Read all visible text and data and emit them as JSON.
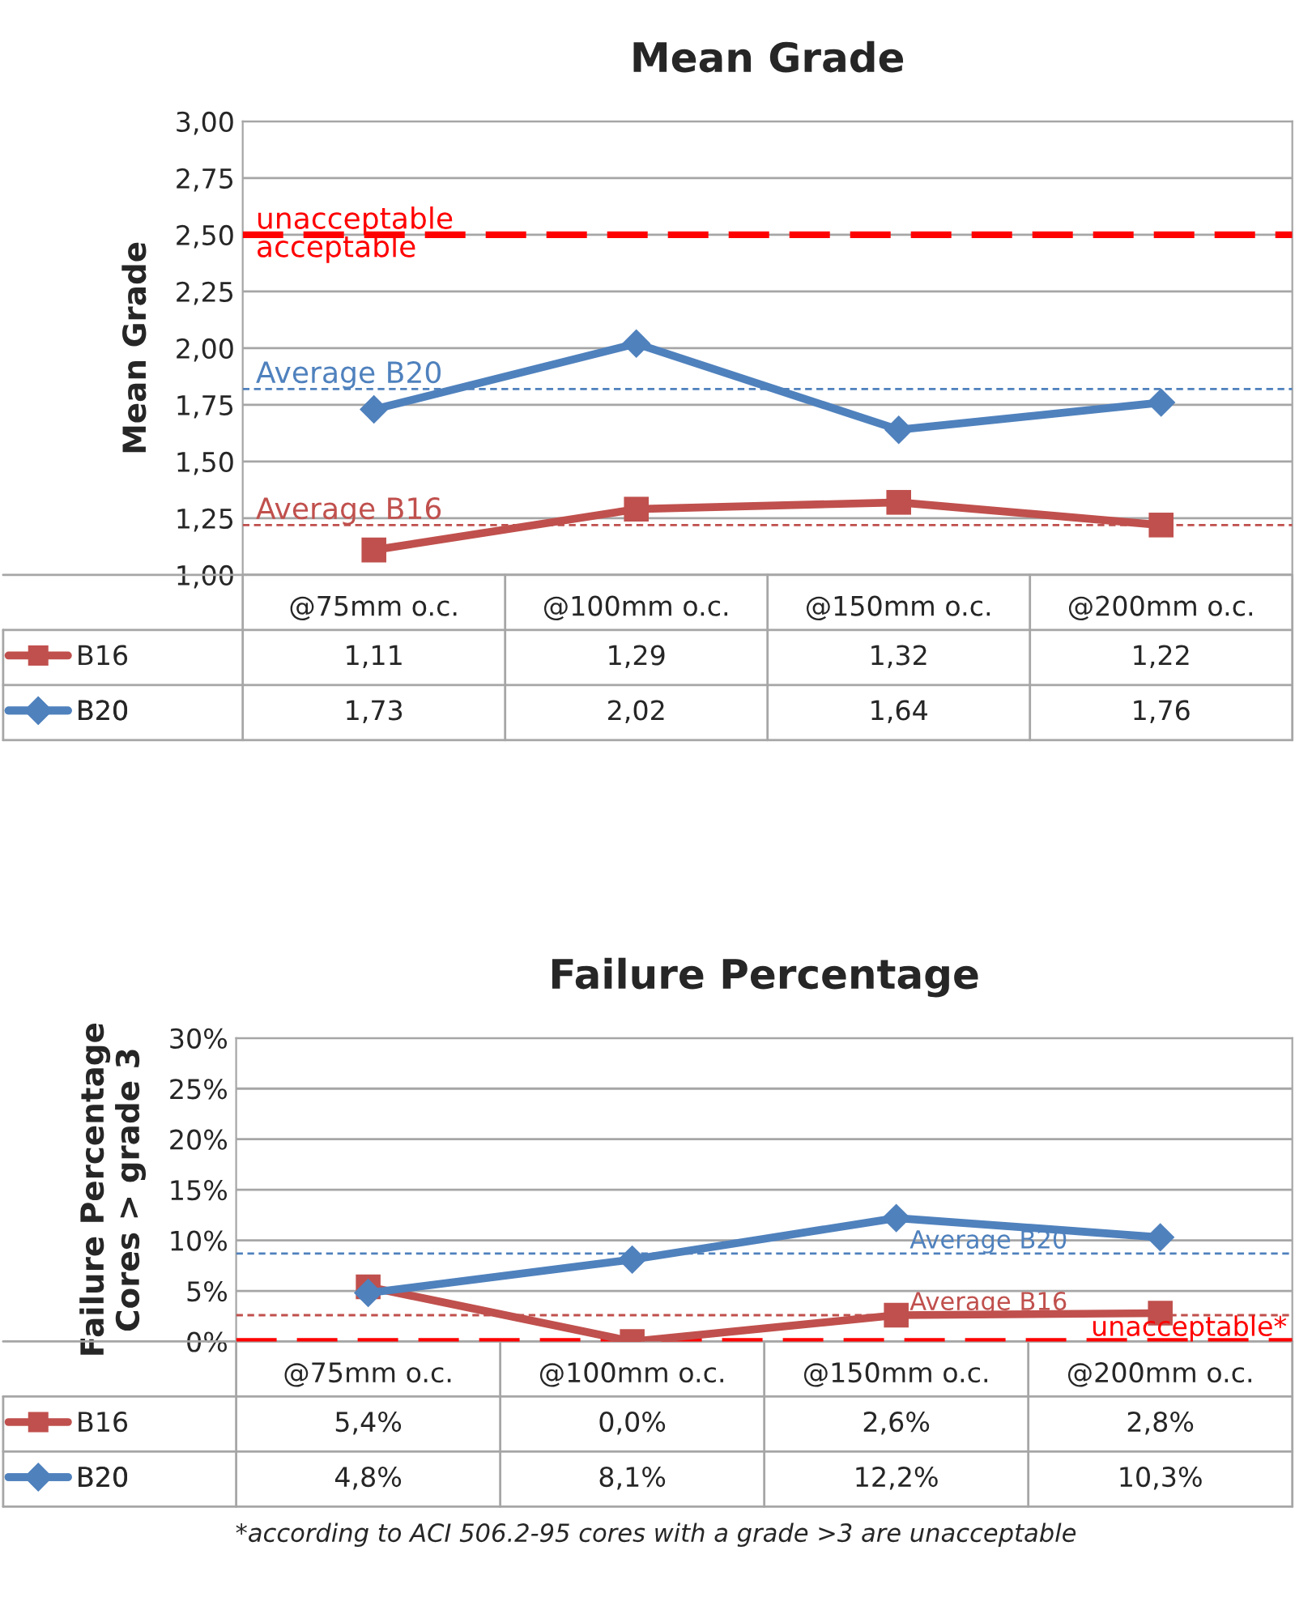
{
  "chart_data": [
    {
      "type": "line",
      "title": "Mean Grade",
      "ylabel": "Mean Grade",
      "categories": [
        "@75mm o.c.",
        "@100mm o.c.",
        "@150mm o.c.",
        "@200mm o.c."
      ],
      "series": [
        {
          "name": "B16",
          "color": "#c0504d",
          "marker": "square",
          "values": [
            1.11,
            1.29,
            1.32,
            1.22
          ],
          "value_labels": [
            "1,11",
            "1,29",
            "1,32",
            "1,22"
          ]
        },
        {
          "name": "B20",
          "color": "#4f81bd",
          "marker": "diamond",
          "values": [
            1.73,
            2.02,
            1.64,
            1.76
          ],
          "value_labels": [
            "1,73",
            "2,02",
            "1,64",
            "1,76"
          ]
        }
      ],
      "ylim": [
        1.0,
        3.0
      ],
      "yticks": [
        {
          "value": 1.0,
          "label": "1,00"
        },
        {
          "value": 1.25,
          "label": "1,25"
        },
        {
          "value": 1.5,
          "label": "1,50"
        },
        {
          "value": 1.75,
          "label": "1,75"
        },
        {
          "value": 2.0,
          "label": "2,00"
        },
        {
          "value": 2.25,
          "label": "2,25"
        },
        {
          "value": 2.5,
          "label": "2,50"
        },
        {
          "value": 2.75,
          "label": "2,75"
        },
        {
          "value": 3.0,
          "label": "3,00"
        }
      ],
      "grid": "y",
      "legend": "bottom",
      "ref_lines": [
        {
          "axis": "y",
          "value": 2.5,
          "label": "unacceptable",
          "color": "#ff0000",
          "line_style": "dashed"
        },
        {
          "axis": "y",
          "value": 1.82,
          "label": "Average B20",
          "color": "#4f81bd",
          "line_style": "dotted"
        },
        {
          "axis": "y",
          "value": 1.22,
          "label": "Average B16",
          "color": "#c0504d",
          "line_style": "dotted"
        }
      ],
      "annotations": [
        {
          "text": "acceptable",
          "y": 2.5
        }
      ]
    },
    {
      "type": "line",
      "title": "Failure Percentage",
      "ylabel": "Failure Percentage\nCores > grade 3",
      "categories": [
        "@75mm o.c.",
        "@100mm o.c.",
        "@150mm o.c.",
        "@200mm o.c."
      ],
      "series": [
        {
          "name": "B16",
          "color": "#c0504d",
          "marker": "square",
          "values": [
            5.4,
            0.0,
            2.6,
            2.8
          ],
          "value_labels": [
            "5,4%",
            "0,0%",
            "2,6%",
            "2,8%"
          ]
        },
        {
          "name": "B20",
          "color": "#4f81bd",
          "marker": "diamond",
          "values": [
            4.8,
            8.1,
            12.2,
            10.3
          ],
          "value_labels": [
            "4,8%",
            "8,1%",
            "12,2%",
            "10,3%"
          ]
        }
      ],
      "ylim": [
        0,
        30
      ],
      "yticks": [
        {
          "value": 0,
          "label": "0%"
        },
        {
          "value": 5,
          "label": "5%"
        },
        {
          "value": 10,
          "label": "10%"
        },
        {
          "value": 15,
          "label": "15%"
        },
        {
          "value": 20,
          "label": "20%"
        },
        {
          "value": 25,
          "label": "25%"
        },
        {
          "value": 30,
          "label": "30%"
        }
      ],
      "grid": "y",
      "legend": "bottom",
      "ref_lines": [
        {
          "axis": "y",
          "value": 8.7,
          "label": "Average B20",
          "color": "#4f81bd",
          "line_style": "dotted"
        },
        {
          "axis": "y",
          "value": 2.6,
          "label": "Average B16",
          "color": "#c0504d",
          "line_style": "dotted"
        },
        {
          "axis": "y",
          "value": 0,
          "label": "unacceptable*",
          "color": "#ff0000",
          "line_style": "dashed"
        }
      ],
      "annotations": [
        "*according to ACI 506.2-95 cores with a grade >3 are unacceptable"
      ]
    }
  ]
}
